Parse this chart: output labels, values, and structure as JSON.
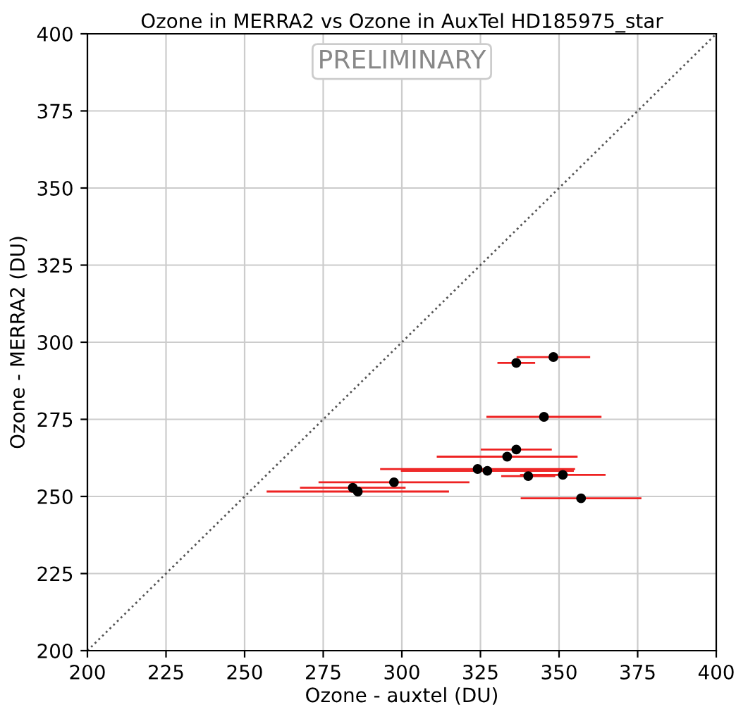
{
  "chart_data": {
    "type": "scatter",
    "title": "Ozone in MERRA2 vs Ozone in AuxTel HD185975_star",
    "xlabel": "Ozone - auxtel (DU)",
    "ylabel": "Ozone - MERRA2 (DU)",
    "annotations": [
      "PRELIMINARY"
    ],
    "xlim": [
      200,
      400
    ],
    "ylim": [
      200,
      400
    ],
    "xticks": [
      200,
      225,
      250,
      275,
      300,
      325,
      350,
      375,
      400
    ],
    "yticks": [
      200,
      225,
      250,
      275,
      300,
      325,
      350,
      375,
      400
    ],
    "grid": true,
    "marker": "circle",
    "series": [
      {
        "color": "#ee2222",
        "colors": [
          "#000000",
          "#000000",
          "#000000",
          "#000000",
          "#000000",
          "#000000",
          "#000000",
          "#000000",
          "#000000",
          "#000000",
          "#000000",
          "#000000",
          "#000000"
        ],
        "x": [
          348.2,
          336.4,
          345.2,
          336.4,
          333.5,
          324.1,
          327.2,
          340.2,
          351.2,
          297.5,
          284.4,
          286.0,
          357.0
        ],
        "values": [
          295.2,
          293.3,
          275.8,
          265.2,
          262.9,
          258.9,
          258.3,
          256.6,
          257.0,
          254.6,
          252.8,
          251.6,
          249.4
        ],
        "xerrors": [
          11.7,
          6,
          18.3,
          11.3,
          22.4,
          31,
          27.5,
          8.6,
          13.6,
          24,
          16.8,
          29,
          19.2
        ]
      },
      {
        "type": "line",
        "color": "#555555",
        "line_style": "dotted",
        "marker": "none",
        "x": [
          200,
          400
        ],
        "values": [
          200,
          400
        ]
      }
    ]
  }
}
